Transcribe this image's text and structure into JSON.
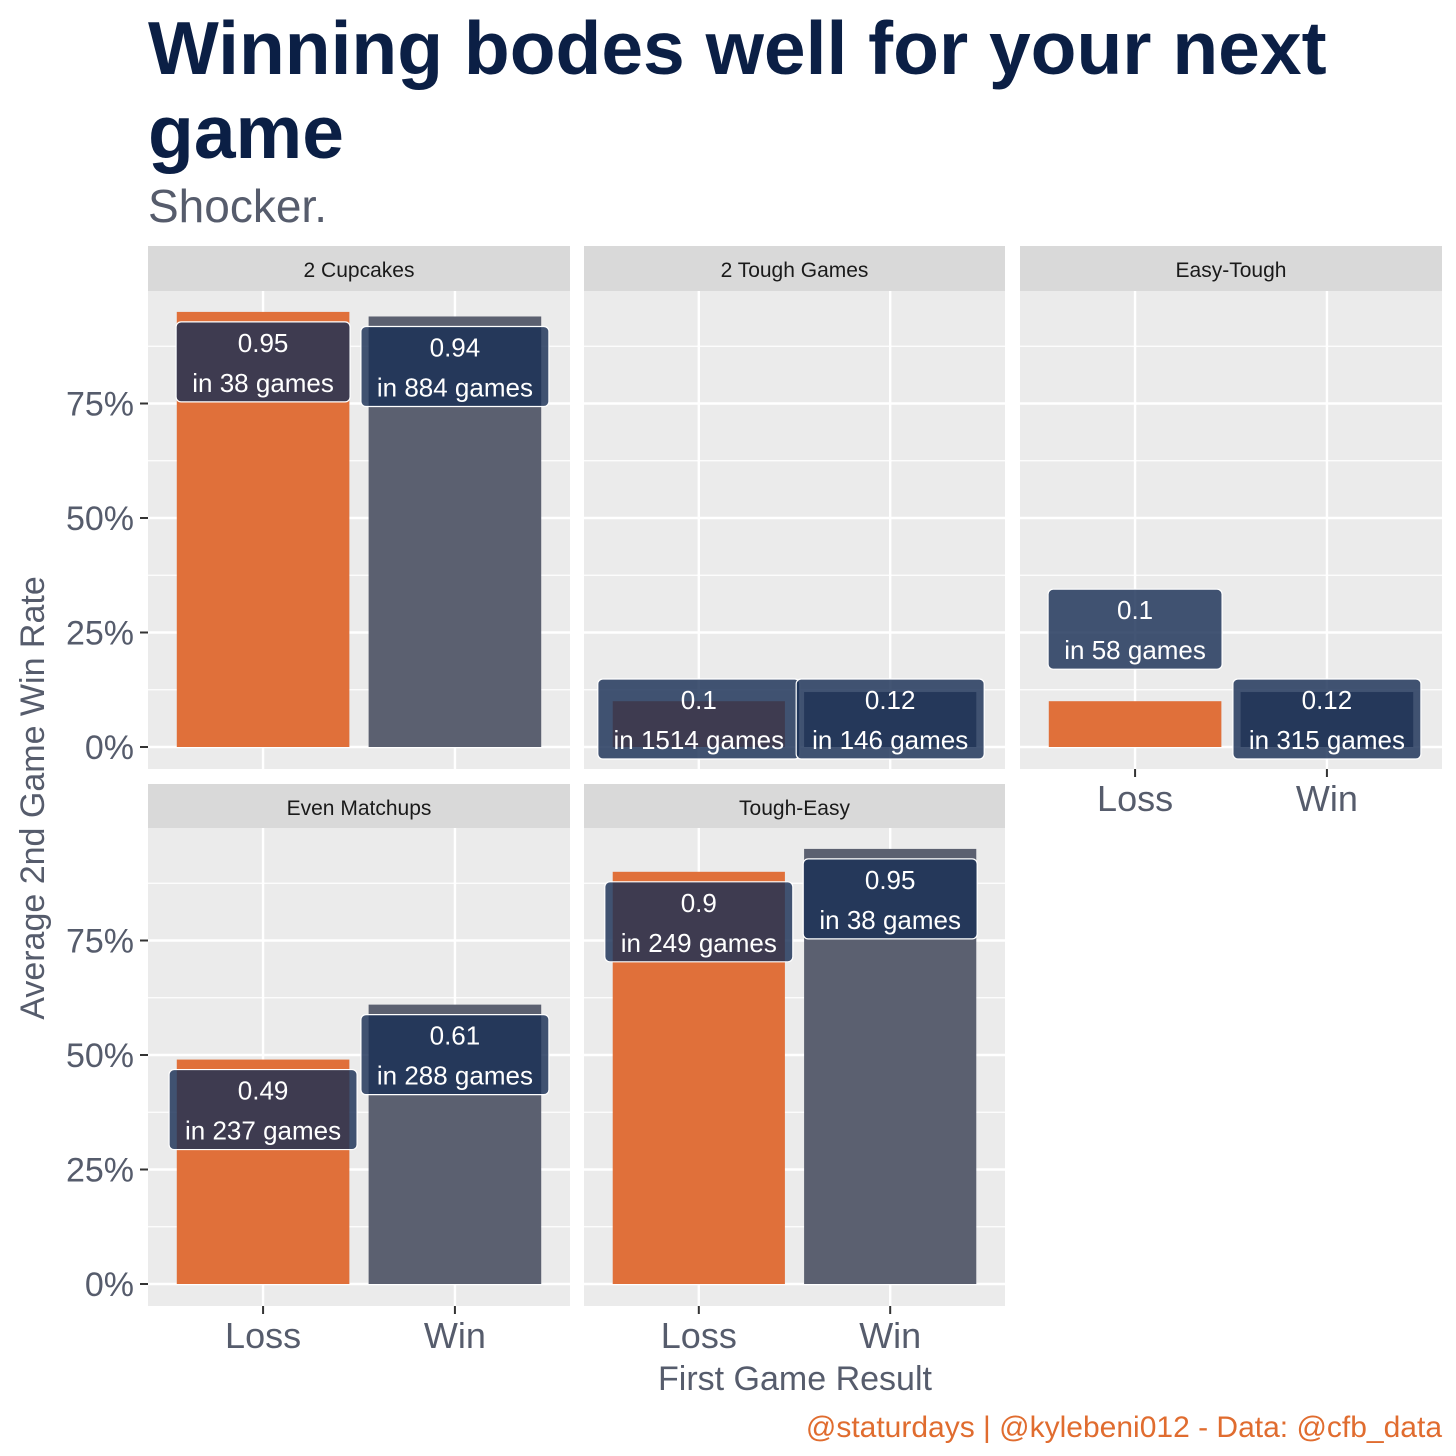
{
  "title": "Winning bodes well for your next game",
  "subtitle": "Shocker.",
  "caption": "@staturdays | @kylebeni012 - Data: @cfb_data",
  "chart_data": {
    "type": "bar",
    "xlabel": "First Game Result",
    "ylabel": "Average 2nd Game Win Rate",
    "categories": [
      "Loss",
      "Win"
    ],
    "ylim": [
      0,
      1
    ],
    "yticks": [
      0,
      0.25,
      0.5,
      0.75
    ],
    "ytick_labels": [
      "0%",
      "25%",
      "50%",
      "75%"
    ],
    "grid": true,
    "colors": {
      "Loss": "#e0703a",
      "Win": "#5b6070",
      "label_fill": "#1a2f55",
      "panel_bg": "#ebebeb",
      "strip_bg": "#d9d9d9"
    },
    "panels": [
      {
        "name": "2 Cupcakes",
        "bars": [
          {
            "category": "Loss",
            "value": 0.95,
            "value_label": "0.95",
            "games_label": "in 38 games"
          },
          {
            "category": "Win",
            "value": 0.94,
            "value_label": "0.94",
            "games_label": "in 884 games"
          }
        ]
      },
      {
        "name": "2 Tough Games",
        "bars": [
          {
            "category": "Loss",
            "value": 0.1,
            "value_label": "0.1",
            "games_label": "in 1514 games"
          },
          {
            "category": "Win",
            "value": 0.12,
            "value_label": "0.12",
            "games_label": "in 146 games"
          }
        ]
      },
      {
        "name": "Easy-Tough",
        "bars": [
          {
            "category": "Loss",
            "value": 0.1,
            "value_label": "0.1",
            "games_label": "in 58 games"
          },
          {
            "category": "Win",
            "value": 0.12,
            "value_label": "0.12",
            "games_label": "in 315 games"
          }
        ]
      },
      {
        "name": "Even Matchups",
        "bars": [
          {
            "category": "Loss",
            "value": 0.49,
            "value_label": "0.49",
            "games_label": "in 237 games"
          },
          {
            "category": "Win",
            "value": 0.61,
            "value_label": "0.61",
            "games_label": "in 288 games"
          }
        ]
      },
      {
        "name": "Tough-Easy",
        "bars": [
          {
            "category": "Loss",
            "value": 0.9,
            "value_label": "0.9",
            "games_label": "in 249 games"
          },
          {
            "category": "Win",
            "value": 0.95,
            "value_label": "0.95",
            "games_label": "in 38 games"
          }
        ]
      }
    ]
  }
}
